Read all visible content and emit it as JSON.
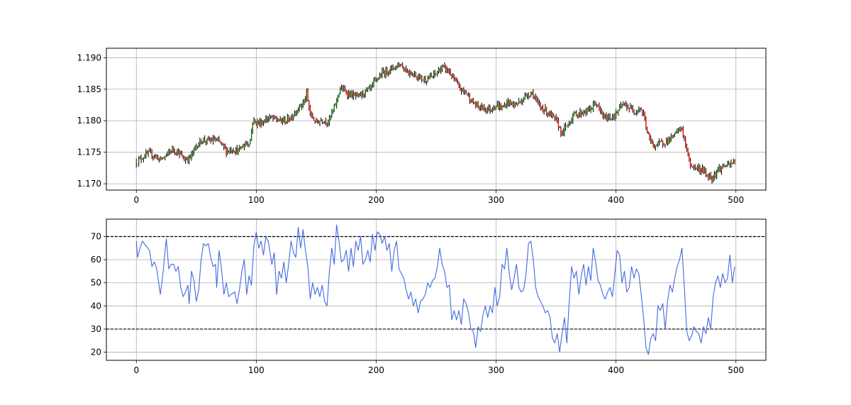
{
  "chart_data": [
    {
      "type": "candlestick",
      "x_range": [
        -25,
        525
      ],
      "ylim": [
        1.169,
        1.1915
      ],
      "xticks": [
        0,
        100,
        200,
        300,
        400,
        500
      ],
      "yticks": [
        1.17,
        1.175,
        1.18,
        1.185,
        1.19
      ],
      "ytick_labels": [
        "1.170",
        "1.175",
        "1.180",
        "1.185",
        "1.190"
      ],
      "grid": true,
      "colors": {
        "up": "#008000",
        "down": "#ff0000",
        "wick": "#000000"
      },
      "close_path": [
        [
          0,
          1.1735
        ],
        [
          5,
          1.1742
        ],
        [
          10,
          1.1748
        ],
        [
          15,
          1.1745
        ],
        [
          20,
          1.1738
        ],
        [
          25,
          1.1745
        ],
        [
          30,
          1.1755
        ],
        [
          35,
          1.175
        ],
        [
          40,
          1.1738
        ],
        [
          45,
          1.1742
        ],
        [
          50,
          1.176
        ],
        [
          55,
          1.177
        ],
        [
          60,
          1.1768
        ],
        [
          65,
          1.177
        ],
        [
          70,
          1.1765
        ],
        [
          75,
          1.1752
        ],
        [
          80,
          1.1755
        ],
        [
          85,
          1.1752
        ],
        [
          90,
          1.1762
        ],
        [
          95,
          1.1768
        ],
        [
          97,
          1.18
        ],
        [
          100,
          1.1797
        ],
        [
          105,
          1.1797
        ],
        [
          110,
          1.1805
        ],
        [
          115,
          1.1803
        ],
        [
          120,
          1.18
        ],
        [
          125,
          1.18
        ],
        [
          130,
          1.1808
        ],
        [
          135,
          1.182
        ],
        [
          140,
          1.183
        ],
        [
          142,
          1.1842
        ],
        [
          145,
          1.181
        ],
        [
          150,
          1.1797
        ],
        [
          155,
          1.1802
        ],
        [
          160,
          1.1798
        ],
        [
          165,
          1.182
        ],
        [
          170,
          1.1852
        ],
        [
          175,
          1.1845
        ],
        [
          180,
          1.184
        ],
        [
          185,
          1.1838
        ],
        [
          190,
          1.1845
        ],
        [
          195,
          1.185
        ],
        [
          200,
          1.1865
        ],
        [
          205,
          1.1875
        ],
        [
          210,
          1.188
        ],
        [
          215,
          1.1885
        ],
        [
          220,
          1.189
        ],
        [
          225,
          1.188
        ],
        [
          230,
          1.1875
        ],
        [
          235,
          1.187
        ],
        [
          240,
          1.1865
        ],
        [
          245,
          1.1868
        ],
        [
          250,
          1.1875
        ],
        [
          255,
          1.1885
        ],
        [
          260,
          1.188
        ],
        [
          265,
          1.1865
        ],
        [
          270,
          1.185
        ],
        [
          275,
          1.1845
        ],
        [
          280,
          1.183
        ],
        [
          285,
          1.1822
        ],
        [
          290,
          1.182
        ],
        [
          295,
          1.1818
        ],
        [
          300,
          1.1825
        ],
        [
          305,
          1.182
        ],
        [
          310,
          1.183
        ],
        [
          315,
          1.1825
        ],
        [
          320,
          1.183
        ],
        [
          325,
          1.184
        ],
        [
          330,
          1.1845
        ],
        [
          335,
          1.1825
        ],
        [
          340,
          1.1818
        ],
        [
          345,
          1.181
        ],
        [
          350,
          1.18
        ],
        [
          355,
          1.178
        ],
        [
          360,
          1.1795
        ],
        [
          365,
          1.181
        ],
        [
          370,
          1.1812
        ],
        [
          375,
          1.1815
        ],
        [
          380,
          1.182
        ],
        [
          383,
          1.183
        ],
        [
          385,
          1.182
        ],
        [
          390,
          1.1805
        ],
        [
          395,
          1.1805
        ],
        [
          400,
          1.181
        ],
        [
          405,
          1.1825
        ],
        [
          410,
          1.1822
        ],
        [
          415,
          1.1815
        ],
        [
          420,
          1.182
        ],
        [
          423,
          1.181
        ],
        [
          425,
          1.179
        ],
        [
          428,
          1.177
        ],
        [
          432,
          1.176
        ],
        [
          438,
          1.1765
        ],
        [
          443,
          1.1768
        ],
        [
          448,
          1.1775
        ],
        [
          452,
          1.1785
        ],
        [
          455,
          1.1788
        ],
        [
          458,
          1.176
        ],
        [
          462,
          1.173
        ],
        [
          467,
          1.1725
        ],
        [
          472,
          1.1722
        ],
        [
          477,
          1.1712
        ],
        [
          480,
          1.171
        ],
        [
          485,
          1.1722
        ],
        [
          490,
          1.1728
        ],
        [
          495,
          1.173
        ],
        [
          499,
          1.1735
        ]
      ]
    },
    {
      "type": "line",
      "x_range": [
        -25,
        525
      ],
      "ylim": [
        16.5,
        77.5
      ],
      "xticks": [
        0,
        100,
        200,
        300,
        400,
        500
      ],
      "xtick_labels": [
        "0",
        "100",
        "200",
        "300",
        "400",
        "500"
      ],
      "yticks": [
        20,
        30,
        40,
        50,
        60,
        70
      ],
      "ytick_labels": [
        "20",
        "30",
        "40",
        "50",
        "60",
        "70"
      ],
      "grid": true,
      "line_color": "#4169e1",
      "threshold_lines": [
        70,
        30
      ],
      "threshold_color": "#000000",
      "series_points": [
        [
          0,
          68
        ],
        [
          1,
          61
        ],
        [
          3,
          65
        ],
        [
          5,
          68
        ],
        [
          8,
          66
        ],
        [
          11,
          64
        ],
        [
          13,
          57
        ],
        [
          15,
          59
        ],
        [
          17,
          56
        ],
        [
          20,
          45
        ],
        [
          22,
          53
        ],
        [
          24,
          64
        ],
        [
          25,
          69
        ],
        [
          27,
          56
        ],
        [
          29,
          58
        ],
        [
          31,
          58
        ],
        [
          33,
          55
        ],
        [
          35,
          57
        ],
        [
          37,
          48
        ],
        [
          39,
          44
        ],
        [
          41,
          46
        ],
        [
          43,
          49
        ],
        [
          44,
          41
        ],
        [
          46,
          55
        ],
        [
          48,
          51
        ],
        [
          50,
          42
        ],
        [
          52,
          47
        ],
        [
          54,
          60
        ],
        [
          56,
          67
        ],
        [
          58,
          66
        ],
        [
          60,
          67
        ],
        [
          62,
          61
        ],
        [
          64,
          57
        ],
        [
          66,
          58
        ],
        [
          67,
          48
        ],
        [
          69,
          64
        ],
        [
          71,
          56
        ],
        [
          73,
          45
        ],
        [
          75,
          50
        ],
        [
          77,
          44
        ],
        [
          79,
          45
        ],
        [
          82,
          46
        ],
        [
          84,
          41
        ],
        [
          86,
          47
        ],
        [
          88,
          55
        ],
        [
          90,
          60
        ],
        [
          92,
          45
        ],
        [
          94,
          53
        ],
        [
          96,
          49
        ],
        [
          98,
          66
        ],
        [
          100,
          72
        ],
        [
          102,
          65
        ],
        [
          104,
          68
        ],
        [
          106,
          62
        ],
        [
          108,
          70
        ],
        [
          110,
          68
        ],
        [
          113,
          58
        ],
        [
          115,
          63
        ],
        [
          117,
          45
        ],
        [
          119,
          55
        ],
        [
          121,
          52
        ],
        [
          123,
          59
        ],
        [
          125,
          50
        ],
        [
          127,
          58
        ],
        [
          129,
          68
        ],
        [
          131,
          63
        ],
        [
          133,
          61
        ],
        [
          135,
          74
        ],
        [
          137,
          65
        ],
        [
          139,
          73
        ],
        [
          141,
          64
        ],
        [
          143,
          57
        ],
        [
          145,
          43
        ],
        [
          147,
          50
        ],
        [
          149,
          45
        ],
        [
          151,
          48
        ],
        [
          153,
          44
        ],
        [
          155,
          49
        ],
        [
          157,
          42
        ],
        [
          159,
          40
        ],
        [
          161,
          55
        ],
        [
          163,
          65
        ],
        [
          165,
          58
        ],
        [
          167,
          75
        ],
        [
          169,
          68
        ],
        [
          171,
          59
        ],
        [
          173,
          60
        ],
        [
          175,
          64
        ],
        [
          177,
          55
        ],
        [
          179,
          65
        ],
        [
          181,
          57
        ],
        [
          183,
          68
        ],
        [
          185,
          64
        ],
        [
          187,
          70
        ],
        [
          189,
          58
        ],
        [
          191,
          60
        ],
        [
          193,
          64
        ],
        [
          195,
          59
        ],
        [
          197,
          71
        ],
        [
          199,
          64
        ],
        [
          201,
          72
        ],
        [
          203,
          71
        ],
        [
          205,
          67
        ],
        [
          207,
          70
        ],
        [
          209,
          64
        ],
        [
          211,
          67
        ],
        [
          213,
          55
        ],
        [
          215,
          64
        ],
        [
          217,
          68
        ],
        [
          219,
          56
        ],
        [
          221,
          54
        ],
        [
          223,
          52
        ],
        [
          225,
          47
        ],
        [
          227,
          43
        ],
        [
          229,
          46
        ],
        [
          231,
          40
        ],
        [
          233,
          43
        ],
        [
          235,
          37
        ],
        [
          237,
          42
        ],
        [
          239,
          43
        ],
        [
          241,
          45
        ],
        [
          243,
          50
        ],
        [
          245,
          48
        ],
        [
          247,
          51
        ],
        [
          249,
          52
        ],
        [
          251,
          57
        ],
        [
          253,
          65
        ],
        [
          255,
          58
        ],
        [
          257,
          55
        ],
        [
          259,
          48
        ],
        [
          261,
          49
        ],
        [
          263,
          34
        ],
        [
          265,
          38
        ],
        [
          267,
          34
        ],
        [
          269,
          38
        ],
        [
          271,
          32
        ],
        [
          273,
          43
        ],
        [
          275,
          41
        ],
        [
          277,
          37
        ],
        [
          279,
          30
        ],
        [
          281,
          29
        ],
        [
          283,
          22
        ],
        [
          285,
          31
        ],
        [
          287,
          29
        ],
        [
          289,
          36
        ],
        [
          291,
          40
        ],
        [
          293,
          35
        ],
        [
          295,
          40
        ],
        [
          297,
          37
        ],
        [
          299,
          48
        ],
        [
          301,
          40
        ],
        [
          303,
          44
        ],
        [
          305,
          58
        ],
        [
          307,
          56
        ],
        [
          309,
          65
        ],
        [
          311,
          54
        ],
        [
          313,
          47
        ],
        [
          315,
          52
        ],
        [
          317,
          58
        ],
        [
          319,
          48
        ],
        [
          321,
          46
        ],
        [
          323,
          47
        ],
        [
          325,
          54
        ],
        [
          327,
          67
        ],
        [
          329,
          68
        ],
        [
          331,
          60
        ],
        [
          333,
          48
        ],
        [
          335,
          44
        ],
        [
          337,
          42
        ],
        [
          339,
          40
        ],
        [
          341,
          37
        ],
        [
          343,
          38
        ],
        [
          345,
          35
        ],
        [
          347,
          26
        ],
        [
          349,
          24
        ],
        [
          351,
          28
        ],
        [
          353,
          20
        ],
        [
          355,
          28
        ],
        [
          357,
          35
        ],
        [
          359,
          24
        ],
        [
          361,
          42
        ],
        [
          363,
          57
        ],
        [
          365,
          52
        ],
        [
          367,
          55
        ],
        [
          369,
          45
        ],
        [
          371,
          53
        ],
        [
          373,
          58
        ],
        [
          375,
          49
        ],
        [
          377,
          57
        ],
        [
          379,
          51
        ],
        [
          381,
          65
        ],
        [
          383,
          59
        ],
        [
          385,
          51
        ],
        [
          387,
          49
        ],
        [
          389,
          45
        ],
        [
          391,
          43
        ],
        [
          393,
          46
        ],
        [
          395,
          48
        ],
        [
          397,
          44
        ],
        [
          399,
          54
        ],
        [
          401,
          64
        ],
        [
          403,
          62
        ],
        [
          405,
          50
        ],
        [
          407,
          55
        ],
        [
          409,
          46
        ],
        [
          411,
          48
        ],
        [
          413,
          57
        ],
        [
          415,
          52
        ],
        [
          417,
          56
        ],
        [
          419,
          54
        ],
        [
          421,
          45
        ],
        [
          423,
          35
        ],
        [
          425,
          22
        ],
        [
          427,
          19
        ],
        [
          429,
          26
        ],
        [
          431,
          28
        ],
        [
          433,
          25
        ],
        [
          435,
          40
        ],
        [
          437,
          38
        ],
        [
          439,
          41
        ],
        [
          441,
          30
        ],
        [
          443,
          42
        ],
        [
          445,
          49
        ],
        [
          447,
          46
        ],
        [
          449,
          52
        ],
        [
          451,
          57
        ],
        [
          453,
          60
        ],
        [
          455,
          65
        ],
        [
          457,
          48
        ],
        [
          459,
          29
        ],
        [
          461,
          25
        ],
        [
          463,
          27
        ],
        [
          465,
          31
        ],
        [
          467,
          29
        ],
        [
          469,
          28
        ],
        [
          471,
          24
        ],
        [
          473,
          31
        ],
        [
          475,
          28
        ],
        [
          477,
          35
        ],
        [
          479,
          30
        ],
        [
          481,
          44
        ],
        [
          483,
          50
        ],
        [
          485,
          53
        ],
        [
          487,
          48
        ],
        [
          489,
          54
        ],
        [
          491,
          50
        ],
        [
          493,
          52
        ],
        [
          495,
          62
        ],
        [
          497,
          50
        ],
        [
          499,
          57
        ]
      ]
    }
  ]
}
